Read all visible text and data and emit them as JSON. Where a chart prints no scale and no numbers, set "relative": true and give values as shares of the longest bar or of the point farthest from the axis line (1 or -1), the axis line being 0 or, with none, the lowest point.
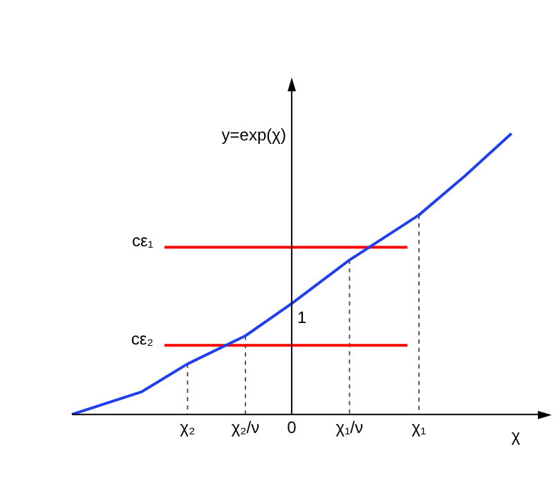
{
  "chart_data": {
    "type": "line",
    "relative": true,
    "xlabel": "χ",
    "ylabel": "y=exp(χ)",
    "categories": [
      null,
      null,
      null,
      null,
      null,
      null,
      null,
      null,
      null,
      null,
      "χ₂",
      null,
      null,
      null,
      null,
      "χ₂/ν",
      null,
      null,
      null,
      "0",
      null,
      null,
      null,
      null,
      "χ₁/ν",
      null,
      null,
      null,
      null,
      null,
      "χ₁",
      null,
      null,
      null,
      null,
      null,
      null,
      null,
      null,
      null,
      null,
      null
    ],
    "grid": false,
    "legend": false,
    "marker": "none",
    "ref_lines": [
      {
        "axis": "x",
        "value": "0",
        "color": "#000000"
      }
    ],
    "annotations": [
      {
        "text": "1",
        "x": "0",
        "y": 0.395
      }
    ],
    "series": [
      {
        "color": "#2040f0",
        "values": [
          0,
          null,
          null,
          null,
          null,
          null,
          0.08,
          null,
          null,
          null,
          0.18,
          null,
          null,
          null,
          null,
          0.28,
          null,
          null,
          null,
          0.395,
          null,
          null,
          null,
          null,
          0.55,
          null,
          null,
          null,
          null,
          null,
          0.71,
          null,
          null,
          null,
          0.85,
          null,
          null,
          null,
          1,
          null,
          null,
          null
        ]
      },
      {
        "name": "cε₁",
        "color": "#ff0000",
        "values": [
          null,
          null,
          null,
          null,
          null,
          null,
          null,
          null,
          0.595,
          null,
          null,
          null,
          null,
          null,
          null,
          null,
          null,
          null,
          null,
          null,
          null,
          null,
          null,
          null,
          null,
          null,
          null,
          null,
          null,
          0.595,
          null,
          null,
          null,
          null,
          null,
          null,
          null,
          null,
          null,
          null,
          null,
          null
        ]
      },
      {
        "name": "cε₂",
        "color": "#ff0000",
        "values": [
          null,
          null,
          null,
          null,
          null,
          null,
          null,
          null,
          0.246,
          null,
          null,
          null,
          null,
          null,
          null,
          null,
          null,
          null,
          null,
          null,
          null,
          null,
          null,
          null,
          null,
          null,
          null,
          null,
          null,
          0.246,
          null,
          null,
          null,
          null,
          null,
          null,
          null,
          null,
          null,
          null,
          null,
          null
        ]
      },
      {
        "color": "#555555",
        "line_style": "dashed",
        "x": [
          "χ₂",
          "χ₂"
        ],
        "values": [
          0.18,
          0
        ]
      },
      {
        "color": "#555555",
        "line_style": "dashed",
        "x": [
          "χ₂/ν",
          "χ₂/ν"
        ],
        "values": [
          0.28,
          0
        ]
      },
      {
        "color": "#555555",
        "line_style": "dashed",
        "x": [
          "χ₁/ν",
          "χ₁/ν"
        ],
        "values": [
          0.55,
          0
        ]
      },
      {
        "color": "#555555",
        "line_style": "dashed",
        "x": [
          "χ₁",
          "χ₁"
        ],
        "values": [
          0.71,
          0
        ]
      }
    ]
  }
}
